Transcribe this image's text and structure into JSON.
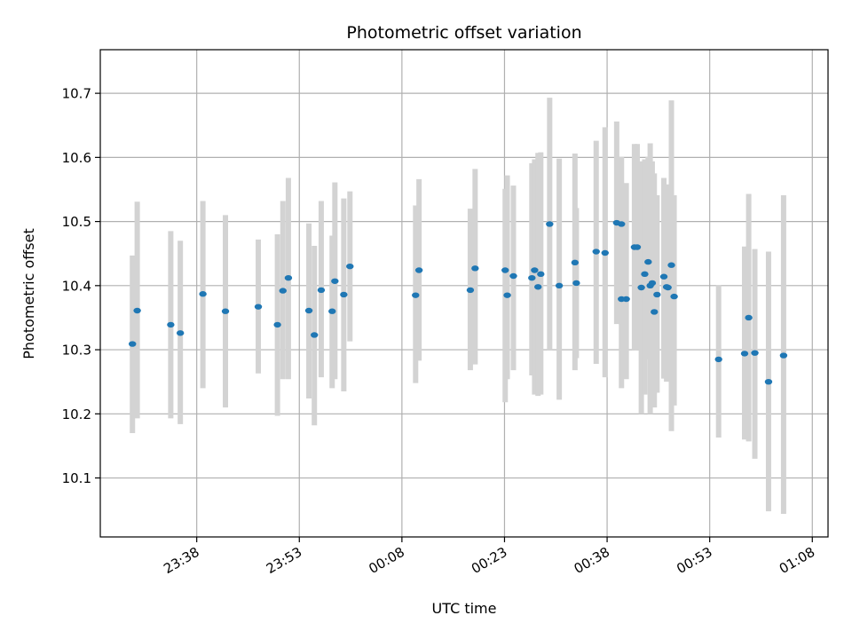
{
  "chart_data": {
    "type": "scatter",
    "title": "Photometric offset variation",
    "xlabel": "UTC time",
    "ylabel": "Photometric offset",
    "x_ticks": [
      "23:38",
      "23:53",
      "00:08",
      "00:23",
      "00:38",
      "00:53",
      "01:08"
    ],
    "x_tick_minutes": [
      0,
      15,
      30,
      45,
      60,
      75,
      90
    ],
    "y_ticks": [
      10.1,
      10.2,
      10.3,
      10.4,
      10.5,
      10.6,
      10.7
    ],
    "x_range_minutes": [
      -14.1,
      92.3
    ],
    "ylim": [
      10.008,
      10.768
    ],
    "grid": true,
    "point_color": "#1f77b4",
    "errorbar_color": "#d3d3d3",
    "series": [
      {
        "x_minutes": [
          -9.4,
          -8.7,
          -3.8,
          -2.4,
          0.9,
          4.2,
          9.0,
          11.8,
          12.6,
          13.4,
          16.4,
          17.2,
          18.2,
          19.8,
          20.2,
          21.5,
          22.4,
          46.3,
          53.0,
          55.5,
          66.3,
          69.8,
          76.3,
          80.7,
          81.6,
          85.8,
          80.1,
          83.6
        ],
        "y": [
          10.309,
          10.361,
          10.339,
          10.326,
          10.387,
          10.36,
          10.367,
          10.339,
          10.392,
          10.412,
          10.361,
          10.323,
          10.393,
          10.36,
          10.407,
          10.386,
          10.43,
          10.415,
          10.4,
          10.404,
          10.4,
          10.383,
          10.285,
          10.35,
          10.295,
          10.291,
          10.294,
          10.25
        ],
        "yerr_low": [
          10.17,
          10.193,
          10.193,
          10.184,
          10.24,
          10.21,
          10.263,
          10.197,
          10.254,
          10.254,
          10.224,
          10.182,
          10.257,
          10.24,
          10.254,
          10.235,
          10.313,
          10.268,
          10.222,
          10.287,
          10.2,
          10.213,
          10.163,
          10.157,
          10.13,
          10.044,
          10.16,
          10.048
        ],
        "yerr_high": [
          10.447,
          10.531,
          10.485,
          10.47,
          10.532,
          10.51,
          10.472,
          10.48,
          10.532,
          10.568,
          10.497,
          10.462,
          10.532,
          10.478,
          10.561,
          10.536,
          10.547,
          10.556,
          10.598,
          10.521,
          10.622,
          10.541,
          10.401,
          10.543,
          10.457,
          10.541,
          10.461,
          10.453
        ]
      },
      {
        "x_minutes": [
          32.0,
          32.5,
          40.0,
          40.7,
          45.1,
          45.4,
          49.0,
          49.4,
          49.9,
          50.3,
          51.6,
          55.3,
          58.4,
          59.7,
          61.4,
          62.1,
          64.0
        ],
        "y": [
          10.385,
          10.424,
          10.393,
          10.427,
          10.424,
          10.385,
          10.412,
          10.424,
          10.398,
          10.418,
          10.496,
          10.436,
          10.453,
          10.451,
          10.498,
          10.496,
          10.46
        ],
        "yerr_low": [
          10.248,
          10.283,
          10.268,
          10.277,
          10.218,
          10.254,
          10.26,
          10.23,
          10.228,
          10.23,
          10.3,
          10.268,
          10.278,
          10.257,
          10.34,
          10.395,
          10.3
        ],
        "yerr_high": [
          10.525,
          10.566,
          10.52,
          10.582,
          10.551,
          10.572,
          10.591,
          10.597,
          10.607,
          10.608,
          10.693,
          10.606,
          10.626,
          10.647,
          10.656,
          10.601,
          10.621
        ]
      },
      {
        "x_minutes": [
          64.4,
          65.0,
          65.5,
          66.0,
          66.6,
          66.9,
          67.3,
          68.3,
          68.7,
          68.9,
          69.4,
          62.8,
          62.1
        ],
        "y": [
          10.46,
          10.397,
          10.418,
          10.437,
          10.404,
          10.359,
          10.386,
          10.414,
          10.398,
          10.397,
          10.432,
          10.379,
          10.379
        ],
        "yerr_low": [
          10.3,
          10.2,
          10.23,
          10.285,
          10.222,
          10.21,
          10.233,
          10.255,
          10.25,
          10.253,
          10.173,
          10.254,
          10.24
        ],
        "yerr_high": [
          10.621,
          10.594,
          10.597,
          10.601,
          10.594,
          10.575,
          10.541,
          10.568,
          10.546,
          10.558,
          10.689,
          10.56,
          10.56
        ]
      }
    ]
  }
}
